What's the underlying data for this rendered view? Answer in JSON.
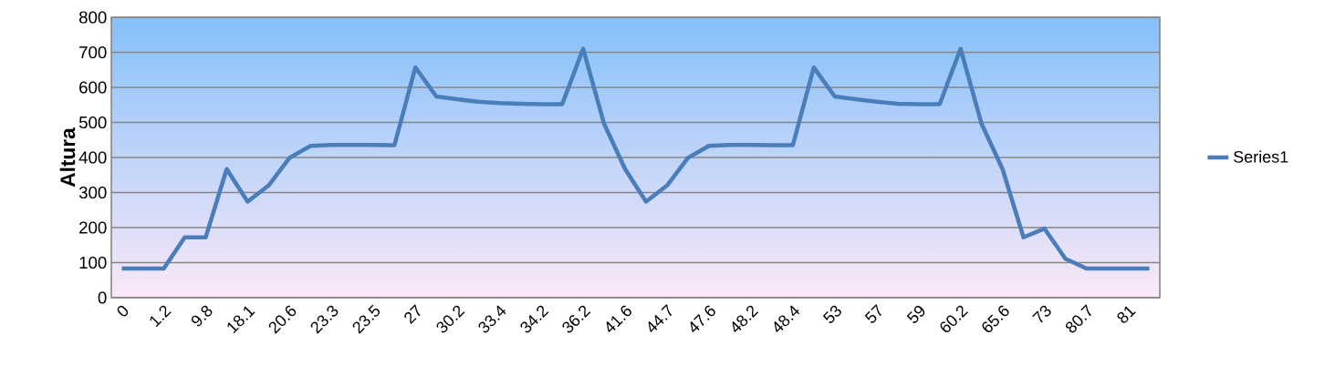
{
  "chart_data": {
    "type": "line",
    "ylabel": "Altura",
    "categories": [
      "0",
      null,
      "1.2",
      null,
      "9.8",
      null,
      "18.1",
      null,
      "20.6",
      null,
      "23.3",
      null,
      "23.5",
      null,
      "27",
      null,
      "30.2",
      null,
      "33.4",
      null,
      "34.2",
      null,
      "36.2",
      null,
      "41.6",
      null,
      "44.7",
      null,
      "47.6",
      null,
      "48.2",
      null,
      "48.4",
      null,
      "53",
      null,
      "57",
      null,
      "59",
      null,
      "60.2",
      null,
      "65.6",
      null,
      "73",
      null,
      "80.7",
      null,
      "81",
      null
    ],
    "series": [
      {
        "name": "Series1",
        "color": "#4a7ebb",
        "values": [
          83,
          83,
          83,
          172,
          172,
          367,
          274,
          320,
          399,
          433,
          436,
          436,
          436,
          435,
          657,
          574,
          566,
          559,
          555,
          553,
          552,
          552,
          710,
          496,
          367,
          274,
          320,
          399,
          433,
          436,
          436,
          435,
          435,
          657,
          574,
          566,
          559,
          553,
          552,
          552,
          710,
          496,
          367,
          172,
          197,
          111,
          83,
          83,
          83,
          83
        ]
      }
    ],
    "ylim": [
      0,
      800
    ],
    "yticks": [
      0,
      100,
      200,
      300,
      400,
      500,
      600,
      700,
      800
    ],
    "grid": "y",
    "legend": "right",
    "marker": "none",
    "line_style": "solid"
  }
}
